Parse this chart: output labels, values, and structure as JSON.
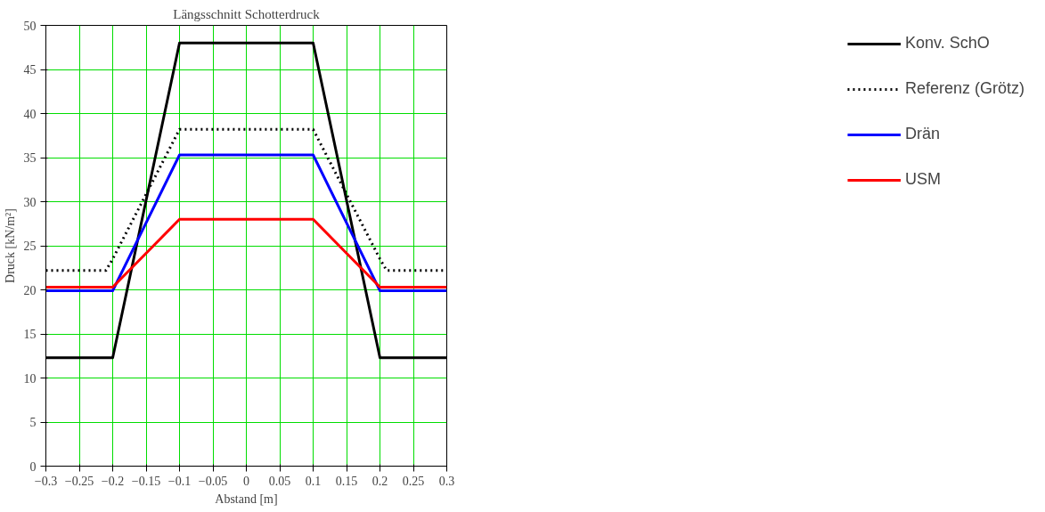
{
  "chart_data": {
    "type": "line",
    "title": "Längsschnitt Schotterdruck",
    "xlabel": "Abstand [m]",
    "ylabel": "Druck [kN/m²]",
    "xlim": [
      -0.3,
      0.3
    ],
    "ylim": [
      0,
      50
    ],
    "xticks": [
      {
        "value": -0.3,
        "label": "−0.3"
      },
      {
        "value": -0.25,
        "label": "−0.25"
      },
      {
        "value": -0.2,
        "label": "−0.2"
      },
      {
        "value": -0.15,
        "label": "−0.15"
      },
      {
        "value": -0.1,
        "label": "−0.1"
      },
      {
        "value": -0.05,
        "label": "−0.05"
      },
      0,
      0.05,
      0.1,
      0.15,
      0.2,
      0.25,
      0.3
    ],
    "yticks": [
      0,
      5,
      10,
      15,
      20,
      25,
      30,
      35,
      40,
      45,
      50
    ],
    "grid": true,
    "legend": "right",
    "line_style": "solid",
    "series": [
      {
        "name": "Konv. SchO",
        "color": "#000000",
        "x": [
          -0.3,
          -0.2,
          -0.1,
          0.1,
          0.2,
          0.3
        ],
        "values": [
          12.3,
          12.3,
          48,
          48,
          12.3,
          12.3
        ]
      },
      {
        "name": "Referenz (Grötz)",
        "color": "#000000",
        "line_style": "dotted",
        "x": [
          -0.3,
          -0.21,
          -0.2,
          -0.1,
          0.1,
          0.2,
          0.21,
          0.3
        ],
        "values": [
          22.2,
          22.2,
          23.5,
          38.2,
          38.2,
          23.5,
          22.2,
          22.2
        ]
      },
      {
        "name": "Drän",
        "color": "#0000ff",
        "x": [
          -0.3,
          -0.2,
          -0.1,
          0.1,
          0.2,
          0.3
        ],
        "values": [
          19.9,
          19.9,
          35.3,
          35.3,
          19.9,
          19.9
        ]
      },
      {
        "name": "USM",
        "color": "#ff0000",
        "x": [
          -0.3,
          -0.2,
          -0.1,
          0.1,
          0.2,
          0.3
        ],
        "values": [
          20.3,
          20.3,
          28,
          28,
          20.3,
          20.3
        ]
      }
    ]
  }
}
